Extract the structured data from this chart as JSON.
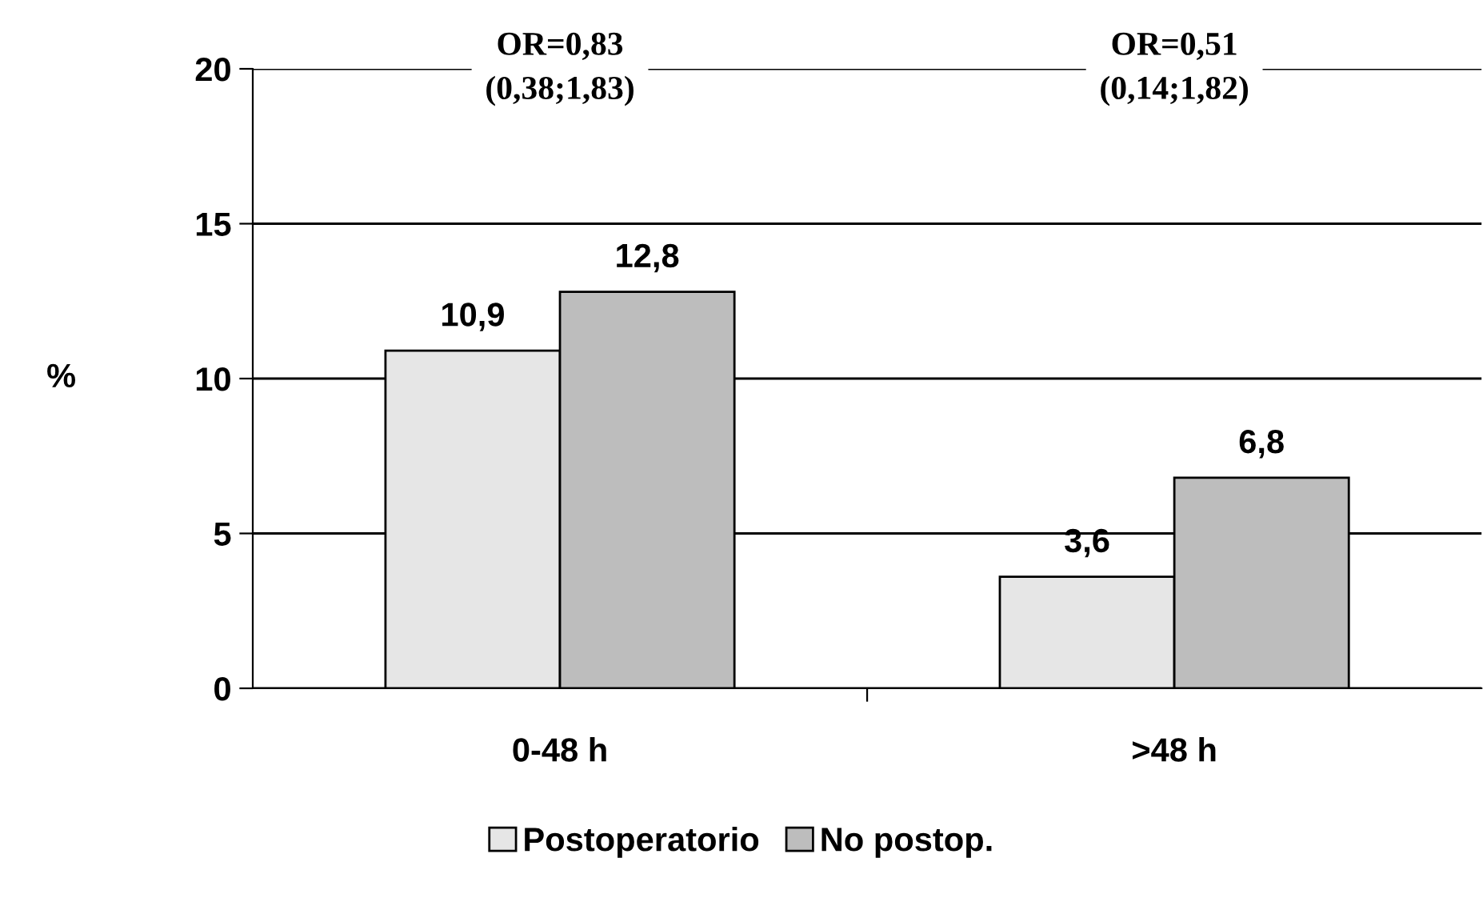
{
  "chart_data": {
    "type": "bar",
    "ylabel": "%",
    "categories": [
      "0-48 h",
      ">48 h"
    ],
    "series": [
      {
        "name": "Postoperatorio",
        "color": "#e6e6e6",
        "values": [
          10.9,
          3.6
        ],
        "value_labels": [
          "10,9",
          "3,6"
        ]
      },
      {
        "name": "No postop.",
        "color": "#bdbdbd",
        "values": [
          12.8,
          6.8
        ],
        "value_labels": [
          "12,8",
          "6,8"
        ]
      }
    ],
    "annotations": [
      "OR=0,83\n(0,38;1,83)",
      "OR=0,51\n(0,14;1,82)"
    ],
    "ylim": [
      0,
      20
    ],
    "yticks": [
      0,
      5,
      10,
      15,
      20
    ],
    "grid": "y",
    "legend": "bottom"
  }
}
